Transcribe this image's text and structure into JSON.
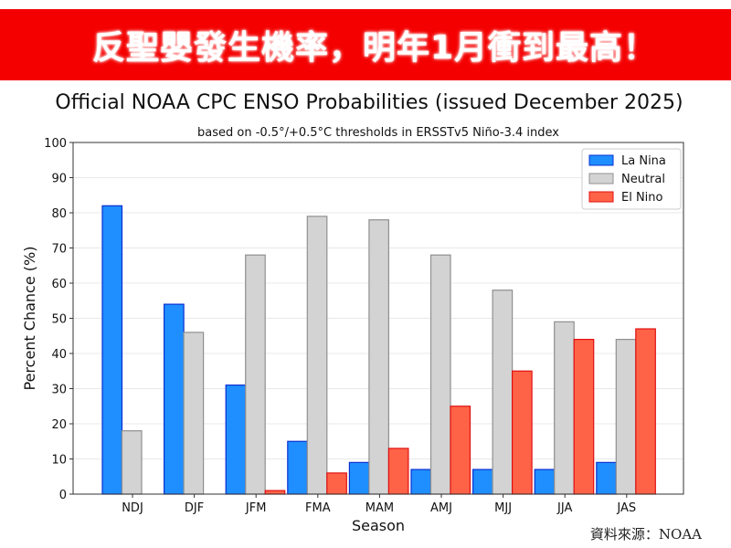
{
  "banner": {
    "text": "反聖嬰發生機率，明年1月衝到最高！"
  },
  "source": "資料來源：NOAA",
  "chart_data": {
    "type": "bar",
    "title": "Official NOAA CPC ENSO Probabilities (issued December 2025)",
    "subtitle": "based on -0.5°/+0.5°C thresholds in ERSSTv5 Niño-3.4 index",
    "xlabel": "Season",
    "ylabel": "Percent Chance (%)",
    "ylim": [
      0,
      100
    ],
    "yticks": [
      0,
      10,
      20,
      30,
      40,
      50,
      60,
      70,
      80,
      90,
      100
    ],
    "grid": true,
    "legend_placement": "top-right",
    "categories": [
      "NDJ",
      "DJF",
      "JFM",
      "FMA",
      "MAM",
      "AMJ",
      "MJJ",
      "JJA",
      "JAS"
    ],
    "series": [
      {
        "name": "La Nina",
        "color": "#1f8fff",
        "edge": "#0a2fd0",
        "values": [
          82,
          54,
          31,
          15,
          9,
          7,
          7,
          7,
          9
        ]
      },
      {
        "name": "Neutral",
        "color": "#d3d3d3",
        "edge": "#909090",
        "values": [
          18,
          46,
          68,
          79,
          78,
          68,
          58,
          49,
          44
        ]
      },
      {
        "name": "El Nino",
        "color": "#ff6347",
        "edge": "#e01010",
        "values": [
          0,
          0,
          1,
          6,
          13,
          25,
          35,
          44,
          47
        ]
      }
    ]
  }
}
